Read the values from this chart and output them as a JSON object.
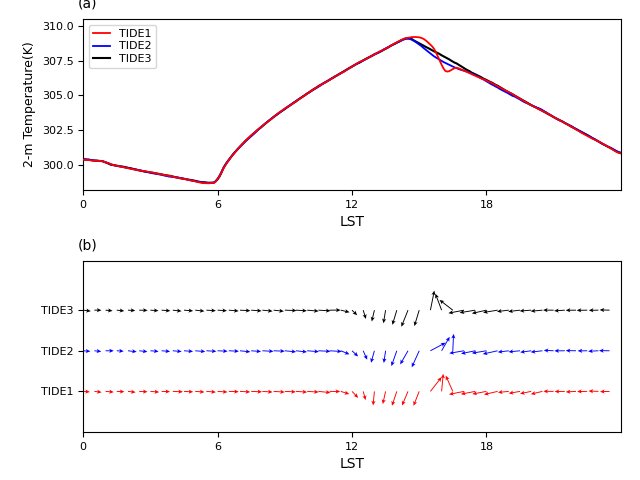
{
  "title_a": "(a)",
  "title_b": "(b)",
  "ylabel_a": "2-m Temperature(K)",
  "xlabel": "LST",
  "xticks": [
    0,
    6,
    12,
    18
  ],
  "xlim": [
    0,
    24
  ],
  "ylim_a": [
    298.2,
    310.5
  ],
  "colors": {
    "TIDE1": "red",
    "TIDE2": "blue",
    "TIDE3": "black"
  },
  "legend_loc": "upper left",
  "wind_ytick_labels": [
    "TIDE1",
    "TIDE2",
    "TIDE3"
  ],
  "wind_ypositions": [
    1,
    2,
    3
  ]
}
